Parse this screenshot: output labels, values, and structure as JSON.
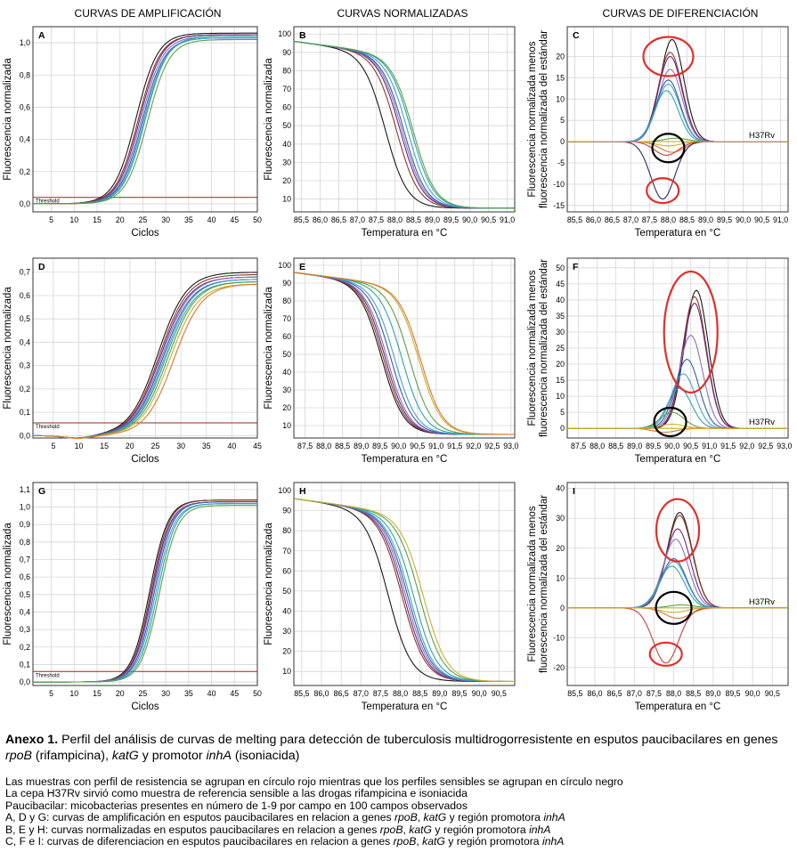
{
  "column_headers": [
    "CURVAS DE AMPLIFICACIÓN",
    "CURVAS NORMALIZADAS",
    "CURVAS DE DIFERENCIACIÓN"
  ],
  "colors": {
    "series": [
      "#1a1a1a",
      "#8b3a2b",
      "#6b2a7a",
      "#8e6fc0",
      "#2f5fa8",
      "#4a9fd0",
      "#2fa5a0",
      "#5aa048",
      "#c8b034",
      "#d9772b",
      "#c74040",
      "#2a2a6a",
      "#6a6a6a",
      "#a07850"
    ],
    "threshold": "#8b2f24",
    "red_circle": "#e0302b",
    "black_circle": "#000000",
    "grid": "#d6d6d6"
  },
  "chart_data": [
    {
      "panel": "A",
      "type": "line",
      "kind": "amplification",
      "xlabel": "Ciclos",
      "ylabel": "Fluorescencia normalizada",
      "xlim": [
        1,
        50
      ],
      "ylim": [
        -0.05,
        1.1
      ],
      "xticks": [
        "5",
        "10",
        "15",
        "20",
        "25",
        "30",
        "35",
        "40",
        "45",
        "50"
      ],
      "xtick_values": [
        5,
        10,
        15,
        20,
        25,
        30,
        35,
        40,
        45,
        50
      ],
      "yticks": [
        "0,0",
        "0,2",
        "0,4",
        "0,6",
        "0,8",
        "1,0"
      ],
      "ytick_values": [
        0,
        0.2,
        0.4,
        0.6,
        0.8,
        1.0
      ],
      "threshold": {
        "label": "Threshold",
        "y": 0.04
      },
      "series": [
        {
          "y_start": 0.0,
          "y_end": 1.06,
          "midpoint": 23.5,
          "slope": 0.42
        },
        {
          "y_start": 0.0,
          "y_end": 1.05,
          "midpoint": 24.0,
          "slope": 0.42
        },
        {
          "y_start": 0.0,
          "y_end": 1.05,
          "midpoint": 24.3,
          "slope": 0.42
        },
        {
          "y_start": 0.0,
          "y_end": 1.04,
          "midpoint": 24.6,
          "slope": 0.42
        },
        {
          "y_start": 0.0,
          "y_end": 1.03,
          "midpoint": 24.9,
          "slope": 0.42
        },
        {
          "y_start": 0.0,
          "y_end": 1.03,
          "midpoint": 25.2,
          "slope": 0.42
        },
        {
          "y_start": 0.0,
          "y_end": 1.04,
          "midpoint": 25.5,
          "slope": 0.42
        },
        {
          "y_start": 0.0,
          "y_end": 1.02,
          "midpoint": 26.0,
          "slope": 0.42
        }
      ]
    },
    {
      "panel": "B",
      "type": "line",
      "kind": "normalized",
      "xlabel": "Temperatura en °C",
      "ylabel": "Fluorescencia normalizada",
      "xlim": [
        85.3,
        91.2
      ],
      "ylim": [
        3,
        104
      ],
      "xticks": [
        "85,5",
        "86,0",
        "86,5",
        "87,0",
        "87,5",
        "88,0",
        "88,5",
        "89,0",
        "89,5",
        "90,0",
        "90,5",
        "91,0"
      ],
      "xtick_values": [
        85.5,
        86.0,
        86.5,
        87.0,
        87.5,
        88.0,
        88.5,
        89.0,
        89.5,
        90.0,
        90.5,
        91.0
      ],
      "yticks": [
        "10",
        "20",
        "30",
        "40",
        "50",
        "60",
        "70",
        "80",
        "90",
        "100"
      ],
      "ytick_values": [
        10,
        20,
        30,
        40,
        50,
        60,
        70,
        80,
        90,
        100
      ],
      "series": [
        {
          "tm": 87.75
        },
        {
          "tm": 88.05
        },
        {
          "tm": 88.15
        },
        {
          "tm": 88.2
        },
        {
          "tm": 88.25
        },
        {
          "tm": 88.35
        },
        {
          "tm": 88.45
        },
        {
          "tm": 88.5
        }
      ]
    },
    {
      "panel": "C",
      "type": "line",
      "kind": "difference",
      "xlabel": "Temperatura en °C",
      "ylabel_lines": [
        "Fluorescencia normalizada menos",
        "fluorescencia normalizada del estándar"
      ],
      "xlim": [
        85.3,
        91.2
      ],
      "ylim": [
        -16.5,
        27
      ],
      "xticks": [
        "85,5",
        "86,0",
        "86,5",
        "87,0",
        "87,5",
        "88,0",
        "88,5",
        "89,0",
        "89,5",
        "90,0",
        "90,5",
        "91,0"
      ],
      "xtick_values": [
        85.5,
        86.0,
        86.5,
        87.0,
        87.5,
        88.0,
        88.5,
        89.0,
        89.5,
        90.0,
        90.5,
        91.0
      ],
      "yticks": [
        "-15",
        "-10",
        "-5",
        "0",
        "5",
        "10",
        "15",
        "20"
      ],
      "ytick_values": [
        -15,
        -10,
        -5,
        0,
        5,
        10,
        15,
        20
      ],
      "reference_label": "H37Rv",
      "series": [
        {
          "peak": 24,
          "center": 88.1
        },
        {
          "peak": 21,
          "center": 88.05
        },
        {
          "peak": 20,
          "center": 88.05
        },
        {
          "peak": 17,
          "center": 88.05
        },
        {
          "peak": 14.5,
          "center": 88.0
        },
        {
          "peak": 13.5,
          "center": 88.0
        },
        {
          "peak": 12,
          "center": 87.95
        },
        {
          "peak": 0.8,
          "center": 88.2
        },
        {
          "peak": -1.0,
          "center": 88.0
        },
        {
          "peak": -2.5,
          "center": 88.1
        },
        {
          "peak": -3.2,
          "center": 87.95
        },
        {
          "peak": -13.5,
          "center": 87.85
        },
        {
          "peak": 0.0,
          "center": 88.0
        }
      ]
    },
    {
      "panel": "D",
      "type": "line",
      "kind": "amplification",
      "xlabel": "Ciclos",
      "ylabel": "Fluorescencia normalizada",
      "xlim": [
        1,
        45
      ],
      "ylim": [
        -0.01,
        0.76
      ],
      "xticks": [
        "5",
        "10",
        "15",
        "20",
        "25",
        "30",
        "35",
        "40",
        "45"
      ],
      "xtick_values": [
        5,
        10,
        15,
        20,
        25,
        30,
        35,
        40,
        45
      ],
      "yticks": [
        "0,0",
        "0,1",
        "0,2",
        "0,3",
        "0,4",
        "0,5",
        "0,6",
        "0,7"
      ],
      "ytick_values": [
        0,
        0.1,
        0.2,
        0.3,
        0.4,
        0.5,
        0.6,
        0.7
      ],
      "threshold": {
        "label": "Threshold",
        "y": 0.055
      },
      "series": [
        {
          "y_start": 0.0,
          "y_end": 0.7,
          "midpoint": 25.5,
          "slope": 0.36
        },
        {
          "y_start": 0.0,
          "y_end": 0.69,
          "midpoint": 25.8,
          "slope": 0.36
        },
        {
          "y_start": 0.0,
          "y_end": 0.68,
          "midpoint": 26.0,
          "slope": 0.36
        },
        {
          "y_start": 0.0,
          "y_end": 0.68,
          "midpoint": 26.3,
          "slope": 0.36
        },
        {
          "y_start": 0.0,
          "y_end": 0.67,
          "midpoint": 26.5,
          "slope": 0.36
        },
        {
          "y_start": 0.0,
          "y_end": 0.67,
          "midpoint": 26.8,
          "slope": 0.36
        },
        {
          "y_start": 0.0,
          "y_end": 0.66,
          "midpoint": 27.0,
          "slope": 0.36
        },
        {
          "y_start": 0.0,
          "y_end": 0.66,
          "midpoint": 27.4,
          "slope": 0.36
        },
        {
          "y_start": 0.0,
          "y_end": 0.65,
          "midpoint": 27.8,
          "slope": 0.36
        },
        {
          "y_start": 0.0,
          "y_end": 0.65,
          "midpoint": 28.6,
          "slope": 0.36
        }
      ]
    },
    {
      "panel": "E",
      "type": "line",
      "kind": "normalized",
      "xlabel": "Temperatura en °C",
      "ylabel": "Fluorescencia normalizada",
      "xlim": [
        87.2,
        93.1
      ],
      "ylim": [
        3,
        104
      ],
      "xticks": [
        "87,5",
        "88,0",
        "88,5",
        "89,0",
        "89,5",
        "90,0",
        "90,5",
        "91,0",
        "91,5",
        "92,0",
        "92,5",
        "93,0"
      ],
      "xtick_values": [
        87.5,
        88.0,
        88.5,
        89.0,
        89.5,
        90.0,
        90.5,
        91.0,
        91.5,
        92.0,
        92.5,
        93.0
      ],
      "yticks": [
        "10",
        "20",
        "30",
        "40",
        "50",
        "60",
        "70",
        "80",
        "90",
        "100"
      ],
      "ytick_values": [
        10,
        20,
        30,
        40,
        50,
        60,
        70,
        80,
        90,
        100
      ],
      "series": [
        {
          "tm": 89.55
        },
        {
          "tm": 89.6
        },
        {
          "tm": 89.65
        },
        {
          "tm": 89.7
        },
        {
          "tm": 89.8
        },
        {
          "tm": 89.9
        },
        {
          "tm": 90.1
        },
        {
          "tm": 90.3
        },
        {
          "tm": 90.55
        },
        {
          "tm": 90.6
        }
      ]
    },
    {
      "panel": "F",
      "type": "line",
      "kind": "difference",
      "xlabel": "Temperatura en °C",
      "ylabel_lines": [
        "Fluorescencia normalizada menos",
        "fluorescencia normalizada del estándar"
      ],
      "xlim": [
        87.2,
        93.1
      ],
      "ylim": [
        -3,
        53
      ],
      "xticks": [
        "87,5",
        "88,0",
        "88,5",
        "89,0",
        "89,5",
        "90,0",
        "90,5",
        "91,0",
        "91,5",
        "92,0",
        "92,5",
        "93,0"
      ],
      "xtick_values": [
        87.5,
        88.0,
        88.5,
        89.0,
        89.5,
        90.0,
        90.5,
        91.0,
        91.5,
        92.0,
        92.5,
        93.0
      ],
      "yticks": [
        "0",
        "5",
        "10",
        "15",
        "20",
        "25",
        "30",
        "35",
        "40",
        "45",
        "50"
      ],
      "ytick_values": [
        0,
        5,
        10,
        15,
        20,
        25,
        30,
        35,
        40,
        45,
        50
      ],
      "reference_label": "H37Rv",
      "series": [
        {
          "peak": 43,
          "center": 90.65
        },
        {
          "peak": 41,
          "center": 90.6
        },
        {
          "peak": 39,
          "center": 90.6
        },
        {
          "peak": 29,
          "center": 90.5
        },
        {
          "peak": 21.5,
          "center": 90.4
        },
        {
          "peak": 17,
          "center": 90.3
        },
        {
          "peak": 12.5,
          "center": 90.2
        },
        {
          "peak": 5,
          "center": 90.0
        },
        {
          "peak": 1.3,
          "center": 90.0
        },
        {
          "peak": -1.2,
          "center": 89.8
        },
        {
          "peak": 0.0,
          "center": 90.0
        }
      ]
    },
    {
      "panel": "G",
      "type": "line",
      "kind": "amplification",
      "xlabel": "Ciclos",
      "ylabel": "Fluorescencia normalizada",
      "xlim": [
        1,
        50
      ],
      "ylim": [
        -0.02,
        1.14
      ],
      "xticks": [
        "5",
        "10",
        "15",
        "20",
        "25",
        "30",
        "35",
        "40",
        "45",
        "50"
      ],
      "xtick_values": [
        5,
        10,
        15,
        20,
        25,
        30,
        35,
        40,
        45,
        50
      ],
      "yticks": [
        "0,0",
        "0,1",
        "0,2",
        "0,3",
        "0,4",
        "0,5",
        "0,6",
        "0,7",
        "0,8",
        "0,9",
        "1,0",
        "1,1"
      ],
      "ytick_values": [
        0,
        0.1,
        0.2,
        0.3,
        0.4,
        0.5,
        0.6,
        0.7,
        0.8,
        0.9,
        1.0,
        1.1
      ],
      "threshold": {
        "label": "Threshold",
        "y": 0.06
      },
      "series": [
        {
          "y_start": 0.0,
          "y_end": 1.04,
          "midpoint": 26.5,
          "slope": 0.5
        },
        {
          "y_start": 0.0,
          "y_end": 1.04,
          "midpoint": 26.8,
          "slope": 0.5
        },
        {
          "y_start": 0.0,
          "y_end": 1.03,
          "midpoint": 27.0,
          "slope": 0.5
        },
        {
          "y_start": 0.0,
          "y_end": 1.03,
          "midpoint": 27.2,
          "slope": 0.5
        },
        {
          "y_start": 0.0,
          "y_end": 1.03,
          "midpoint": 27.5,
          "slope": 0.5
        },
        {
          "y_start": 0.0,
          "y_end": 1.02,
          "midpoint": 27.8,
          "slope": 0.5
        },
        {
          "y_start": 0.0,
          "y_end": 1.02,
          "midpoint": 28.2,
          "slope": 0.5
        },
        {
          "y_start": 0.0,
          "y_end": 1.01,
          "midpoint": 28.6,
          "slope": 0.5
        }
      ]
    },
    {
      "panel": "H",
      "type": "line",
      "kind": "normalized",
      "xlabel": "Temperatura en °C",
      "ylabel": "Fluorescencia normalizada",
      "xlim": [
        85.3,
        90.9
      ],
      "ylim": [
        3,
        104
      ],
      "xticks": [
        "85,5",
        "86,0",
        "86,5",
        "87,0",
        "87,5",
        "88,0",
        "88,5",
        "89,0",
        "89,5",
        "90,0",
        "90,5"
      ],
      "xtick_values": [
        85.5,
        86.0,
        86.5,
        87.0,
        87.5,
        88.0,
        88.5,
        89.0,
        89.5,
        90.0,
        90.5
      ],
      "yticks": [
        "10",
        "20",
        "30",
        "40",
        "50",
        "60",
        "70",
        "80",
        "90",
        "100"
      ],
      "ytick_values": [
        10,
        20,
        30,
        40,
        50,
        60,
        70,
        80,
        90,
        100
      ],
      "series": [
        {
          "tm": 87.7
        },
        {
          "tm": 88.05
        },
        {
          "tm": 88.1
        },
        {
          "tm": 88.15
        },
        {
          "tm": 88.2
        },
        {
          "tm": 88.25
        },
        {
          "tm": 88.35
        },
        {
          "tm": 88.5
        },
        {
          "tm": 88.6
        }
      ]
    },
    {
      "panel": "I",
      "type": "line",
      "kind": "difference",
      "xlabel": "Temperatura en °C",
      "ylabel_lines": [
        "Fluorescencia normalizada menos",
        "fluorescencia normalizada del estándar"
      ],
      "xlim": [
        85.3,
        90.9
      ],
      "ylim": [
        -26,
        42
      ],
      "xticks": [
        "85,5",
        "86,0",
        "86,5",
        "87,0",
        "87,5",
        "88,0",
        "88,5",
        "89,0",
        "89,5",
        "90,0",
        "90,5"
      ],
      "xtick_values": [
        85.5,
        86.0,
        86.5,
        87.0,
        87.5,
        88.0,
        88.5,
        89.0,
        89.5,
        90.0,
        90.5
      ],
      "yticks": [
        "-20",
        "-10",
        "0",
        "10",
        "20",
        "30",
        "40"
      ],
      "ytick_values": [
        -20,
        -10,
        0,
        10,
        20,
        30,
        40
      ],
      "reference_label": "H37Rv",
      "series": [
        {
          "peak": 32,
          "center": 88.15
        },
        {
          "peak": 31,
          "center": 88.15
        },
        {
          "peak": 26.5,
          "center": 88.1
        },
        {
          "peak": 23,
          "center": 88.05
        },
        {
          "peak": 16.5,
          "center": 88.0
        },
        {
          "peak": 15.5,
          "center": 88.0
        },
        {
          "peak": 14,
          "center": 87.95
        },
        {
          "peak": 1.0,
          "center": 88.2
        },
        {
          "peak": -1.5,
          "center": 88.0
        },
        {
          "peak": -3.5,
          "center": 88.1
        },
        {
          "peak": -18.5,
          "center": 87.8
        },
        {
          "peak": 0.0,
          "center": 88.0
        }
      ]
    }
  ],
  "caption": {
    "title_bold": "Anexo 1.",
    "title_text": " Perfil del análisis de curvas de melting para detección de tuberculosis multidrogorresistente en esputos paucibacilares en genes ",
    "gene_rpoB": "rpoB",
    "title_text_2": " (rifampicina), ",
    "gene_katG": "katG",
    "title_text_3": " y promotor ",
    "gene_inhA": "inhA",
    "title_text_4": " (isoniacida)",
    "note_1": "Las muestras con perfil de resistencia se agrupan en círculo rojo mientras que los perfiles sensibles se agrupan en círculo negro",
    "note_2": "La cepa H37Rv sirvió como muestra de referencia sensible a las drogas rifampicina e isoniacida",
    "note_3": "Paucibacilar: micobacterias presentes en número de 1-9 por campo en 100 campos observados",
    "note_4_a": "A, D y G: curvas de amplificación en esputos paucibacilares en relacion a genes ",
    "note_4_b": "rpoB",
    "note_4_c": ", ",
    "note_4_d": "katG",
    "note_4_e": " y región promotora ",
    "note_4_f": "inhA",
    "note_5_a": "B, E y H: curvas normalizadas en esputos paucibacilares en relacion a genes ",
    "note_5_b": "rpoB",
    "note_5_c": ", ",
    "note_5_d": "katG",
    "note_5_e": " y región promotora ",
    "note_5_f": "inhA",
    "note_6_a": "C, F e I: curvas de diferenciacion en esputos paucibacilares en relacion a genes ",
    "note_6_b": "rpoB",
    "note_6_c": ", ",
    "note_6_d": "katG",
    "note_6_e": " y región promotora ",
    "note_6_f": "inhA"
  }
}
